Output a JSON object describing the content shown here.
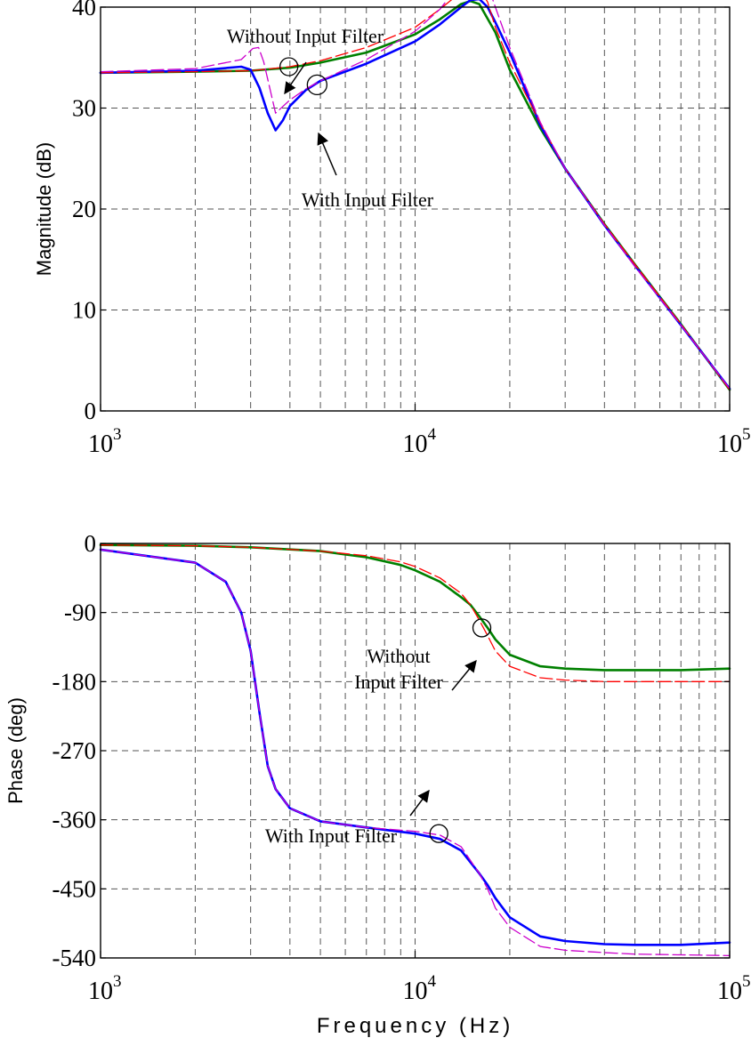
{
  "chart_data": [
    {
      "type": "line",
      "ylabel": "Magnitude (dB)",
      "xscale": "log",
      "xlim": [
        1000,
        100000
      ],
      "ylim": [
        0,
        40
      ],
      "grid": true,
      "x_ticks": [
        {
          "value": 1000,
          "base": "10",
          "exp": "3"
        },
        {
          "value": 10000,
          "base": "10",
          "exp": "4"
        },
        {
          "value": 100000,
          "base": "10",
          "exp": "5"
        }
      ],
      "y_ticks": [
        0,
        10,
        20,
        30,
        40
      ],
      "annotations": [
        {
          "lines": [
            "Without Input Filter"
          ],
          "target": [
            3970,
            34.1
          ]
        },
        {
          "lines": [
            "With Input Filter"
          ],
          "target": [
            4880,
            32.3
          ]
        }
      ],
      "series": [
        {
          "color": "#008000",
          "x": [
            1000,
            2000,
            3000,
            4000,
            5000,
            7000,
            10000,
            12000,
            14000,
            15000,
            16000,
            18000,
            20000,
            25000,
            30000,
            40000,
            50000,
            70000,
            100000
          ],
          "y": [
            33.5,
            33.6,
            33.7,
            34.0,
            34.5,
            35.5,
            37.3,
            38.8,
            40.3,
            40.6,
            40.3,
            37.5,
            33.8,
            28.0,
            24.0,
            18.5,
            14.5,
            8.6,
            2.1
          ]
        },
        {
          "color": "#0000ff",
          "x": [
            1000,
            2000,
            2800,
            3000,
            3200,
            3400,
            3600,
            3800,
            4000,
            4500,
            5000,
            7000,
            10000,
            12000,
            14000,
            15000,
            16000,
            17000,
            18000,
            20000,
            25000,
            30000,
            40000,
            50000,
            70000,
            100000
          ],
          "y": [
            33.5,
            33.7,
            34.1,
            33.8,
            32.0,
            29.5,
            27.8,
            28.8,
            30.2,
            31.8,
            32.7,
            34.4,
            36.6,
            38.3,
            40.0,
            40.7,
            40.8,
            40.0,
            38.5,
            35.5,
            28.3,
            24.0,
            18.4,
            14.4,
            8.5,
            2.2
          ]
        },
        {
          "color": "#ff0000",
          "dashed": true,
          "x": [
            1000,
            2000,
            3000,
            4000,
            5000,
            7000,
            10000,
            12000,
            14000,
            15000,
            16000,
            17000,
            18000,
            20000,
            25000,
            30000,
            40000,
            50000,
            70000,
            100000
          ],
          "y": [
            33.5,
            33.6,
            33.7,
            34.1,
            34.7,
            36.0,
            38.0,
            39.8,
            41.5,
            42.0,
            41.8,
            40.5,
            38.0,
            34.5,
            28.5,
            24.0,
            18.5,
            14.5,
            8.6,
            2.1
          ]
        },
        {
          "color": "#cc00cc",
          "dashed": true,
          "x": [
            1000,
            2000,
            2800,
            3050,
            3180,
            3300,
            3600,
            4000,
            4500,
            5000,
            7000,
            10000,
            12000,
            14000,
            15000,
            16000,
            17000,
            18000,
            20000,
            25000,
            30000,
            40000,
            50000,
            70000,
            100000
          ],
          "y": [
            33.6,
            33.9,
            34.8,
            35.9,
            36.0,
            34.6,
            29.5,
            30.8,
            31.9,
            32.7,
            34.8,
            37.6,
            39.8,
            42.5,
            43.4,
            43.8,
            42.2,
            40.0,
            36.0,
            28.6,
            24.0,
            18.4,
            14.3,
            8.5,
            2.2
          ]
        }
      ]
    },
    {
      "type": "line",
      "xlabel": "Frequency (Hz)",
      "ylabel": "Phase (deg)",
      "xscale": "log",
      "xlim": [
        1000,
        100000
      ],
      "ylim": [
        -540,
        0
      ],
      "grid": true,
      "x_ticks": [
        {
          "value": 1000,
          "base": "10",
          "exp": "3"
        },
        {
          "value": 10000,
          "base": "10",
          "exp": "4"
        },
        {
          "value": 100000,
          "base": "10",
          "exp": "5"
        }
      ],
      "y_ticks": [
        0,
        -90,
        -180,
        -270,
        -360,
        -450,
        -540
      ],
      "annotations": [
        {
          "lines": [
            "Without",
            "Input Filter"
          ],
          "target": [
            16300,
            -110
          ]
        },
        {
          "lines": [
            "With Input Filter"
          ],
          "target": [
            11900,
            -378
          ]
        }
      ],
      "series": [
        {
          "color": "#008000",
          "x": [
            1000,
            2000,
            3000,
            5000,
            7000,
            9000,
            10000,
            12000,
            14000,
            15000,
            16000,
            17000,
            18000,
            20000,
            25000,
            30000,
            40000,
            50000,
            70000,
            100000
          ],
          "y": [
            -2,
            -3,
            -5,
            -10,
            -18,
            -28,
            -35,
            -50,
            -70,
            -80,
            -95,
            -110,
            -125,
            -145,
            -160,
            -163,
            -165,
            -165,
            -165,
            -163
          ]
        },
        {
          "color": "#0000ff",
          "x": [
            1000,
            2000,
            2500,
            2800,
            3000,
            3200,
            3400,
            3600,
            4000,
            5000,
            7000,
            10000,
            12000,
            14000,
            16000,
            17000,
            18000,
            20000,
            25000,
            30000,
            40000,
            50000,
            70000,
            100000
          ],
          "y": [
            -8,
            -25,
            -50,
            -90,
            -140,
            -220,
            -290,
            -320,
            -345,
            -362,
            -370,
            -378,
            -385,
            -400,
            -430,
            -445,
            -462,
            -487,
            -512,
            -518,
            -522,
            -523,
            -523,
            -520
          ]
        },
        {
          "color": "#ff0000",
          "dashed": true,
          "x": [
            1000,
            2000,
            3000,
            5000,
            7000,
            9000,
            10000,
            12000,
            14000,
            15000,
            16000,
            17000,
            18000,
            20000,
            25000,
            30000,
            40000,
            50000,
            70000,
            100000
          ],
          "y": [
            -2,
            -3,
            -5,
            -10,
            -16,
            -24,
            -30,
            -45,
            -65,
            -80,
            -100,
            -120,
            -140,
            -160,
            -175,
            -178,
            -180,
            -180,
            -180,
            -180
          ]
        },
        {
          "color": "#cc00cc",
          "dashed": true,
          "x": [
            1000,
            2000,
            2500,
            2800,
            3000,
            3200,
            3400,
            3600,
            4000,
            5000,
            7000,
            10000,
            12000,
            14000,
            16000,
            17000,
            18000,
            20000,
            25000,
            30000,
            40000,
            50000,
            70000,
            100000
          ],
          "y": [
            -8,
            -25,
            -50,
            -90,
            -140,
            -220,
            -290,
            -320,
            -345,
            -362,
            -370,
            -375,
            -380,
            -395,
            -430,
            -450,
            -475,
            -500,
            -525,
            -530,
            -533,
            -535,
            -536,
            -537
          ]
        }
      ]
    }
  ]
}
